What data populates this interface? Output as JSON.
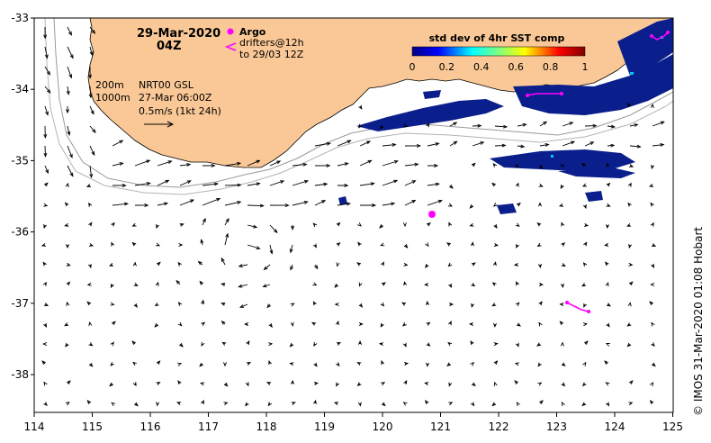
{
  "header": {
    "date": "29-Mar-2020",
    "time": "04Z"
  },
  "legend": {
    "argo_label": "Argo",
    "drifters_label": "drifters@12h",
    "drifters_to": "to 29/03 12Z",
    "iso_200": "200m",
    "iso_1000": "1000m",
    "product": "NRT00 GSL",
    "product_date": "27-Mar 06:00Z",
    "scale_label": "0.5m/s (1kt 24h)"
  },
  "colorbar": {
    "title": "std dev of 4hr SST comp",
    "ticks": [
      "0",
      "0.2",
      "0.4",
      "0.6",
      "0.8",
      "1"
    ]
  },
  "axes": {
    "x_ticks": [
      "114",
      "115",
      "116",
      "117",
      "118",
      "119",
      "120",
      "121",
      "122",
      "123",
      "124",
      "125"
    ],
    "y_ticks": [
      "-33",
      "-34",
      "-35",
      "-36",
      "-37",
      "-38"
    ]
  },
  "credit": "© IMOS 31-Mar-2020 01:08 Hobart",
  "colors": {
    "land": "#fac896",
    "argo": "#ff00ff",
    "drifter": "#ff00ff",
    "sst_high": "#0a1e8c"
  }
}
